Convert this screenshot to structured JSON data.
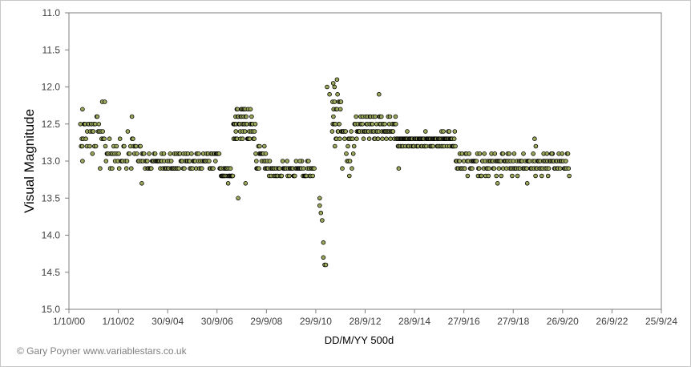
{
  "chart_data": {
    "type": "scatter",
    "title": "",
    "xlabel": "DD/M/YY  500d",
    "ylabel": "Visual Magnitude",
    "y_inverted": true,
    "ylim": [
      11.0,
      15.0
    ],
    "y_ticks": [
      "11.0",
      "11.5",
      "12.0",
      "12.5",
      "13.0",
      "13.5",
      "14.0",
      "14.5",
      "15.0"
    ],
    "x_tick_labels": [
      "1/10/00",
      "1/10/02",
      "30/9/04",
      "30/9/06",
      "29/9/08",
      "29/9/10",
      "28/9/12",
      "28/9/14",
      "27/9/16",
      "27/9/18",
      "26/9/20",
      "26/9/22",
      "25/9/24"
    ],
    "x_range_years": [
      2000.75,
      2024.73
    ],
    "grid": false,
    "point_fill": "#9aaa5a",
    "point_stroke": "#000000",
    "copyright": "© Gary Poyner  www.variablestars.co.uk",
    "segments": [
      {
        "x0": 2001.2,
        "x1": 2002.0,
        "center": 12.6,
        "spread": 0.22,
        "n": 28
      },
      {
        "x0": 2002.0,
        "x1": 2003.7,
        "center": 12.85,
        "spread": 0.25,
        "n": 50
      },
      {
        "x0": 2003.7,
        "x1": 2006.9,
        "center": 13.0,
        "spread": 0.13,
        "n": 110
      },
      {
        "x0": 2006.9,
        "x1": 2007.4,
        "center": 13.18,
        "spread": 0.08,
        "n": 26
      },
      {
        "x0": 2007.4,
        "x1": 2007.9,
        "center": 12.52,
        "spread": 0.22,
        "n": 35
      },
      {
        "x0": 2007.9,
        "x1": 2008.3,
        "center": 12.58,
        "spread": 0.14,
        "n": 22
      },
      {
        "x0": 2008.3,
        "x1": 2008.8,
        "center": 12.95,
        "spread": 0.16,
        "n": 24
      },
      {
        "x0": 2008.8,
        "x1": 2010.7,
        "center": 13.12,
        "spread": 0.09,
        "n": 65
      },
      {
        "x0": 2011.4,
        "x1": 2011.8,
        "center": 12.45,
        "spread": 0.35,
        "n": 26
      },
      {
        "x0": 2011.8,
        "x1": 2012.3,
        "center": 12.85,
        "spread": 0.3,
        "n": 20
      },
      {
        "x0": 2012.3,
        "x1": 2014.0,
        "center": 12.55,
        "spread": 0.16,
        "n": 80
      },
      {
        "x0": 2014.0,
        "x1": 2016.4,
        "center": 12.72,
        "spread": 0.08,
        "n": 125
      },
      {
        "x0": 2016.4,
        "x1": 2021.0,
        "center": 13.05,
        "spread": 0.13,
        "n": 160
      }
    ],
    "extra_points": [
      {
        "x": 2001.3,
        "y": 12.3
      },
      {
        "x": 2001.3,
        "y": 13.0
      },
      {
        "x": 2001.7,
        "y": 12.9
      },
      {
        "x": 2002.1,
        "y": 12.2
      },
      {
        "x": 2002.2,
        "y": 12.2
      },
      {
        "x": 2002.5,
        "y": 13.1
      },
      {
        "x": 2003.3,
        "y": 12.4
      },
      {
        "x": 2003.7,
        "y": 13.3
      },
      {
        "x": 2007.6,
        "y": 13.5
      },
      {
        "x": 2007.9,
        "y": 13.3
      },
      {
        "x": 2008.0,
        "y": 12.3
      },
      {
        "x": 2008.1,
        "y": 12.3
      },
      {
        "x": 2010.1,
        "y": 13.0
      },
      {
        "x": 2010.9,
        "y": 13.5
      },
      {
        "x": 2010.9,
        "y": 13.6
      },
      {
        "x": 2010.95,
        "y": 13.7
      },
      {
        "x": 2011.0,
        "y": 13.8
      },
      {
        "x": 2011.05,
        "y": 14.1
      },
      {
        "x": 2011.05,
        "y": 14.3
      },
      {
        "x": 2011.1,
        "y": 14.4
      },
      {
        "x": 2011.15,
        "y": 14.4
      },
      {
        "x": 2011.2,
        "y": 12.0
      },
      {
        "x": 2011.3,
        "y": 12.1
      },
      {
        "x": 2011.45,
        "y": 11.95
      },
      {
        "x": 2011.5,
        "y": 12.0
      },
      {
        "x": 2011.6,
        "y": 11.9
      },
      {
        "x": 2012.1,
        "y": 13.2
      },
      {
        "x": 2013.3,
        "y": 12.1
      },
      {
        "x": 2014.1,
        "y": 13.1
      },
      {
        "x": 2018.1,
        "y": 13.3
      },
      {
        "x": 2019.3,
        "y": 13.3
      },
      {
        "x": 2019.6,
        "y": 12.7
      },
      {
        "x": 2019.65,
        "y": 12.8
      },
      {
        "x": 2020.1,
        "y": 12.9
      },
      {
        "x": 2020.3,
        "y": 12.9
      },
      {
        "x": 2021.0,
        "y": 13.2
      }
    ]
  }
}
